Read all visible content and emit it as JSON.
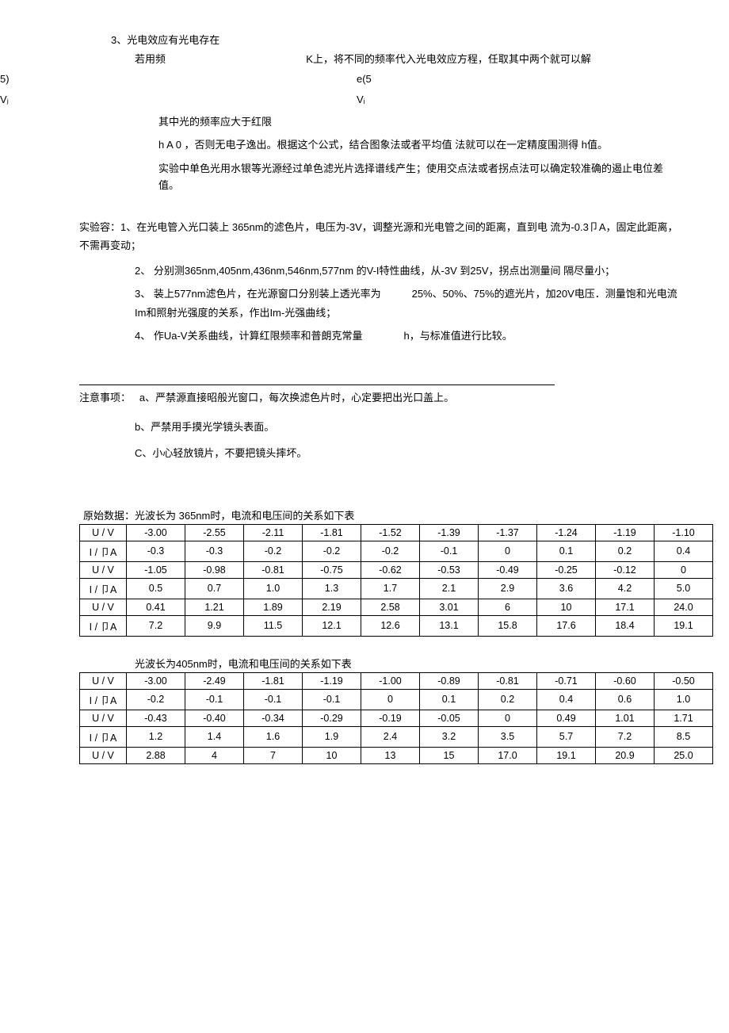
{
  "sec3_title": "3、光电效应有光电存在",
  "sec3_p1a": "若用频",
  "sec3_p1b": "K上，将不同的频率代入光电效应方程，任取其中两个就可以解",
  "formula_l1": "5)",
  "formula_r1": "e(5",
  "formula_l2": "Vⱼ",
  "formula_r2": "Vᵢ",
  "sec3_p2": "其中光的频率应大于红限",
  "sec3_p3": "h A 0 ，否则无电子逸出。根据这个公式，结合图象法或者平均值 法就可以在一定精度围测得 h值。",
  "sec3_p4": "实验中单色光用水银等光源经过单色滤光片选择谱线产生；使用交点法或者拐点法可以确定较准确的遏止电位差值。",
  "exp_title": "实验容：1、在光电管入光口装上 365nm的滤色片，电压为-3V，调整光源和光电管之间的距离，直到电 流为-0.3卩A，固定此距离，不需再变动；",
  "exp_items": [
    "2、 分别测365nm,405nm,436nm,546nm,577nm 的V-I特性曲线，从-3V 到25V，拐点出测量间 隔尽量小；",
    "3、 装上577nm滤色片，在光源窗口分别装上透光率为　　　25%、50%、75%的遮光片，加20V电压．测量饱和光电流Im和照射光强度的关系，作出Im-光强曲线；",
    "4、 作Ua-V关系曲线，计算红限频率和普朗克常量　　　　h，与标准值进行比较。"
  ],
  "notes_label": "注意事项：",
  "notes": [
    "a、严禁源直接昭般光窗口，每次换滤色片时，心定要把出光口盖上。",
    "b、严禁用手摸光学镜头表面。",
    "C、小心轻放镜片，不要把镜头摔坏。"
  ],
  "data_caption1": "原始数据：光波长为 365nm时，电流和电压间的关系如下表",
  "table1": {
    "rows": [
      [
        "U / V",
        "-3.00",
        "-2.55",
        "-2.11",
        "-1.81",
        "-1.52",
        "-1.39",
        "-1.37",
        "-1.24",
        "-1.19",
        "-1.10"
      ],
      [
        "I / 卩A",
        "-0.3",
        "-0.3",
        "-0.2",
        "-0.2",
        "-0.2",
        "-0.1",
        "0",
        "0.1",
        "0.2",
        "0.4"
      ],
      [
        "U / V",
        "-1.05",
        "-0.98",
        "-0.81",
        "-0.75",
        "-0.62",
        "-0.53",
        "-0.49",
        "-0.25",
        "-0.12",
        "0"
      ],
      [
        "I / 卩A",
        "0.5",
        "0.7",
        "1.0",
        "1.3",
        "1.7",
        "2.1",
        "2.9",
        "3.6",
        "4.2",
        "5.0"
      ],
      [
        "U / V",
        "0.41",
        "1.21",
        "1.89",
        "2.19",
        "2.58",
        "3.01",
        "6",
        "10",
        "17.1",
        "24.0"
      ],
      [
        "I / 卩A",
        "7.2",
        "9.9",
        "11.5",
        "12.1",
        "12.6",
        "13.1",
        "15.8",
        "17.6",
        "18.4",
        "19.1"
      ]
    ]
  },
  "data_caption2": "光波长为405nm时，电流和电压间的关系如下表",
  "table2": {
    "rows": [
      [
        "U / V",
        "-3.00",
        "-2.49",
        "-1.81",
        "-1.19",
        "-1.00",
        "-0.89",
        "-0.81",
        "-0.71",
        "-0.60",
        "-0.50"
      ],
      [
        "I / 卩A",
        "-0.2",
        "-0.1",
        "-0.1",
        "-0.1",
        "0",
        "0.1",
        "0.2",
        "0.4",
        "0.6",
        "1.0"
      ],
      [
        "U / V",
        "-0.43",
        "-0.40",
        "-0.34",
        "-0.29",
        "-0.19",
        "-0.05",
        "0",
        "0.49",
        "1.01",
        "1.71"
      ],
      [
        "I / 卩A",
        "1.2",
        "1.4",
        "1.6",
        "1.9",
        "2.4",
        "3.2",
        "3.5",
        "5.7",
        "7.2",
        "8.5"
      ],
      [
        "U / V",
        "2.88",
        "4",
        "7",
        "10",
        "13",
        "15",
        "17.0",
        "19.1",
        "20.9",
        "25.0"
      ]
    ]
  }
}
